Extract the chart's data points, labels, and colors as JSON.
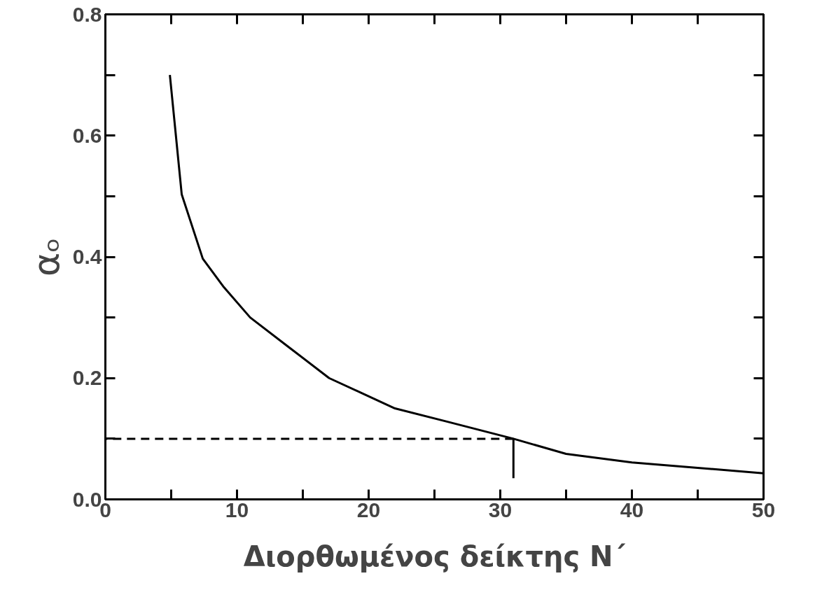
{
  "chart_data": {
    "type": "line",
    "xlabel": "Διορθωμένος δείκτης N΄",
    "ylabel": "αₒ",
    "xlim": [
      0,
      50
    ],
    "ylim": [
      0,
      0.8
    ],
    "xticks": [
      0,
      {
        "value": 5,
        "label": null
      },
      10,
      {
        "value": 15,
        "label": null
      },
      20,
      {
        "value": 25,
        "label": null
      },
      30,
      {
        "value": 35,
        "label": null
      },
      40,
      {
        "value": 45,
        "label": null
      },
      50
    ],
    "yticks": [
      {
        "value": 0,
        "label": "0.0"
      },
      {
        "value": 0.1,
        "label": null
      },
      {
        "value": 0.2,
        "label": "0.2"
      },
      {
        "value": 0.3,
        "label": null
      },
      {
        "value": 0.4,
        "label": "0.4"
      },
      {
        "value": 0.5,
        "label": null
      },
      {
        "value": 0.6,
        "label": "0.6"
      },
      {
        "value": 0.7,
        "label": null
      },
      {
        "value": 0.8,
        "label": "0.8"
      }
    ],
    "grid": false,
    "marker": "none",
    "series": [
      {
        "color": "#000000",
        "line_style": "solid",
        "x": [
          4.9,
          5.8,
          7.4,
          9,
          11,
          14,
          17,
          19.5,
          22,
          26,
          31,
          35,
          40,
          45,
          50
        ],
        "values": [
          0.7,
          0.503,
          0.397,
          0.35,
          0.3,
          0.25,
          0.2,
          0.175,
          0.15,
          0.128,
          0.1,
          0.075,
          0.061,
          0.052,
          0.043
        ]
      },
      {
        "color": "#000000",
        "line_style": "dashed",
        "x": [
          31,
          0
        ],
        "values": [
          0.1,
          0.1
        ]
      },
      {
        "color": "#000000",
        "line_style": "solid",
        "x": [
          31,
          31
        ],
        "values": [
          0.035,
          0.1
        ]
      }
    ]
  }
}
